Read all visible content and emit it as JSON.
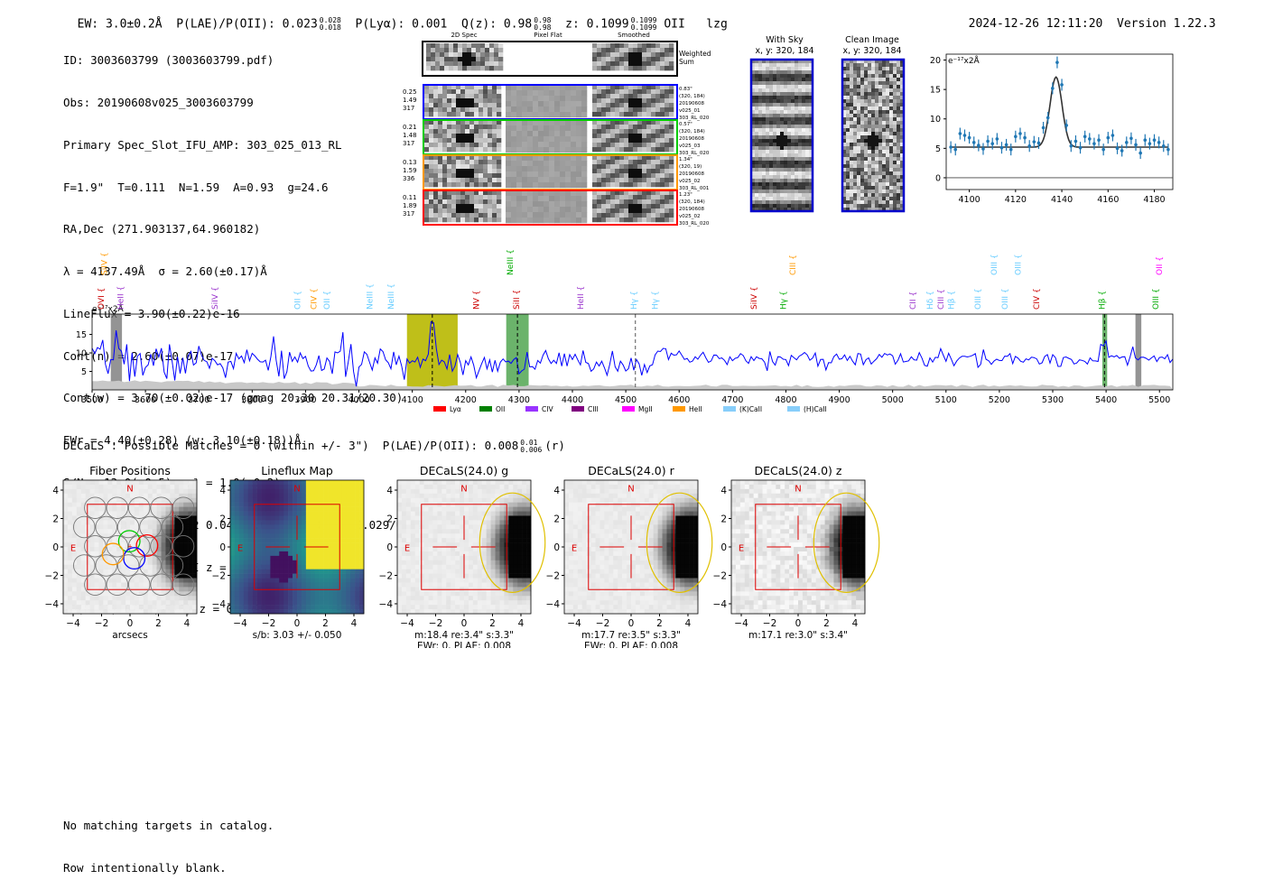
{
  "header": {
    "ew": "EW: 3.0±0.2Å",
    "plae": "P(LAE)/P(OII): 0.023",
    "plae_hi": "0.028",
    "plae_lo": "0.018",
    "plya": "P(Lyα): 0.001",
    "qz": "Q(z): 0.98",
    "qz_hi": "0.98",
    "qz_lo": "0.98",
    "z": "z: 0.1099",
    "z_hi": "0.1099",
    "z_lo": "0.1099",
    "line": "OII",
    "tag": "lzg",
    "datetime": "2024-12-26 12:11:20",
    "version": "Version 1.22.3"
  },
  "info_lines": [
    "ID: 3003603799 (3003603799.pdf)",
    "Obs: 20190608v025_3003603799",
    "Primary Spec_Slot_IFU_AMP: 303_025_013_RL",
    "F=1.9\"  T=0.111  N=1.59  A=0.93  g=24.6",
    "RA,Dec (271.903137,64.960182)",
    "λ = 4137.49Å  σ = 2.60(±0.17)Å",
    "LineFlux = 3.90(±0.22)e-16",
    "Cont(n) = 2.60(±0.07)e-17",
    "Cont(w) = 3.70(±0.02)e-17 (gmag 20.30 20.31/20.30)",
    "EWr = 4.40(±0.28) (w: 3.10(±0.18))Å",
    "S/N = 13.0(±0.5)  χ² = 1.0(±0.2)",
    "P(LAE)/P(OII): 0.042 0.047/0.035 (w: 0.024 0.029/0.02)",
    "LyA z = 2.4035   OII z = 0.1099",
    "*Q(0.98) OII (3728) z = 0.1099   EW r = 9.4Å"
  ],
  "cutouts": {
    "col_titles": [
      "2D Spec",
      "Pixel Flat",
      "Smoothed"
    ],
    "weighted_label": "Weighted Sum",
    "rows": [
      {
        "left": [
          "0.25",
          "1.49",
          "317"
        ],
        "right": [
          "0.83\"",
          "(320, 184)",
          "20190608",
          "v025_01",
          "303_RL_020"
        ],
        "color": "#0000ff"
      },
      {
        "left": [
          "0.21",
          "1.48",
          "317"
        ],
        "right": [
          "0.57\"",
          "(320, 184)",
          "20190608",
          "v025_03",
          "303_RL_020"
        ],
        "color": "#00cc00"
      },
      {
        "left": [
          "0.13",
          "1.59",
          "336"
        ],
        "right": [
          "1.34\"",
          "(320, 19)",
          "20190608",
          "v025_02",
          "303_RL_001"
        ],
        "color": "#ff9900"
      },
      {
        "left": [
          "0.11",
          "1.89",
          "317"
        ],
        "right": [
          "1.23\"",
          "(320, 184)",
          "20190608",
          "v025_02",
          "303_RL_020"
        ],
        "color": "#ff0000"
      }
    ]
  },
  "sky": {
    "with_sky_title": "With Sky",
    "with_sky_sub": "x, y: 320, 184",
    "clean_title": "Clean Image",
    "clean_sub": "x, y: 320, 184"
  },
  "chart_data": [
    {
      "type": "scatter",
      "title": "",
      "ylabel": "e⁻¹⁷x2Å",
      "xlim": [
        4090,
        4188
      ],
      "ylim": [
        -2,
        21
      ],
      "xticks": [
        4100,
        4120,
        4140,
        4160,
        4180
      ],
      "yticks": [
        0,
        5,
        10,
        15,
        20
      ],
      "points_x": [
        4092,
        4094,
        4096,
        4098,
        4100,
        4102,
        4104,
        4106,
        4108,
        4110,
        4112,
        4114,
        4116,
        4118,
        4120,
        4122,
        4124,
        4126,
        4128,
        4130,
        4132,
        4134,
        4136,
        4138,
        4140,
        4142,
        4144,
        4146,
        4148,
        4150,
        4152,
        4154,
        4156,
        4158,
        4160,
        4162,
        4164,
        4166,
        4168,
        4170,
        4172,
        4174,
        4176,
        4178,
        4180,
        4182,
        4184,
        4186
      ],
      "points_y": [
        5.2,
        4.8,
        7.5,
        7.2,
        6.8,
        6.0,
        5.5,
        4.9,
        6.2,
        5.8,
        6.6,
        5.1,
        5.6,
        4.8,
        7.0,
        7.5,
        6.8,
        5.4,
        6.1,
        5.9,
        8.5,
        10.2,
        15.2,
        19.6,
        15.8,
        8.9,
        5.4,
        6.2,
        5.1,
        7.0,
        6.6,
        5.8,
        6.4,
        4.8,
        6.8,
        7.2,
        5.0,
        4.6,
        6.0,
        6.7,
        5.6,
        4.2,
        6.4,
        5.8,
        6.4,
        6.0,
        5.4,
        4.8
      ],
      "err": 1.0,
      "model": {
        "amplitude": 11.9,
        "center": 4137.49,
        "sigma": 2.6,
        "continuum": 5.2
      }
    },
    {
      "type": "line",
      "title": "",
      "ylabel": "e⁻¹⁷x2Å",
      "xlim": [
        3500,
        5525
      ],
      "ylim": [
        0,
        20.5
      ],
      "xticks": [
        3500,
        3600,
        3700,
        3800,
        3900,
        4000,
        4100,
        4200,
        4300,
        4400,
        4500,
        4600,
        4700,
        4800,
        4900,
        5000,
        5100,
        5200,
        5300,
        5400,
        5500
      ],
      "yticks": [
        5,
        10,
        15
      ],
      "series": [
        {
          "name": "flux",
          "color": "#0000ff",
          "x_start": 3500,
          "x_step": 5,
          "level_start": 7.5,
          "level_end": 7.5,
          "seed": 7
        },
        {
          "name": "noise",
          "color": "#b0b0b0"
        }
      ],
      "shaded_regions": [
        {
          "x0": 3535,
          "x1": 3556,
          "color": "#707070",
          "label": "sky"
        },
        {
          "x0": 4090,
          "x1": 4185,
          "color": "#b8b800",
          "label": "Lyα window"
        },
        {
          "x0": 4276,
          "x1": 4318,
          "color": "#3a9a3a",
          "label": "OII window"
        },
        {
          "x0": 5393,
          "x1": 5402,
          "color": "#3a9a3a",
          "label": "Hβ window"
        },
        {
          "x0": 5455,
          "x1": 5466,
          "color": "#707070",
          "label": "sky"
        }
      ],
      "line_peaks": [
        {
          "x": 4137.5,
          "height": 13.0
        },
        {
          "x": 5397,
          "height": 6.5
        },
        {
          "x": 3548,
          "height": 8.0
        }
      ],
      "vlines": [
        {
          "x": 4137.5,
          "color": "#000000"
        },
        {
          "x": 4297,
          "color": "#000000"
        },
        {
          "x": 4518,
          "color": "#555555"
        },
        {
          "x": 5397,
          "color": "#000000"
        }
      ],
      "line_labels": [
        {
          "name": "OVI",
          "x": 3522,
          "color": "#cc0000",
          "row": 1
        },
        {
          "name": "HeII",
          "x": 3558,
          "color": "#9933cc",
          "row": 1
        },
        {
          "name": "SiIV",
          "x": 3528,
          "color": "#ff9900",
          "row": 0
        },
        {
          "name": "SiIV",
          "x": 3735,
          "color": "#9933cc",
          "row": 1
        },
        {
          "name": "OII",
          "x": 3890,
          "color": "#66ccff",
          "row": 1
        },
        {
          "name": "CIV",
          "x": 3920,
          "color": "#ff9900",
          "row": 1
        },
        {
          "name": "OII",
          "x": 3945,
          "color": "#66ccff",
          "row": 1
        },
        {
          "name": "NeIII",
          "x": 4025,
          "color": "#66ccff",
          "row": 1
        },
        {
          "name": "NeIII",
          "x": 4065,
          "color": "#66ccff",
          "row": 1
        },
        {
          "name": "NV",
          "x": 4225,
          "color": "#cc0000",
          "row": 1
        },
        {
          "name": "NeIII",
          "x": 4288,
          "color": "#00aa00",
          "row": 0
        },
        {
          "name": "SiII",
          "x": 4300,
          "color": "#cc0000",
          "row": 1
        },
        {
          "name": "HeII",
          "x": 4420,
          "color": "#9933cc",
          "row": 1
        },
        {
          "name": "Hγ",
          "x": 4520,
          "color": "#66ccff",
          "row": 1
        },
        {
          "name": "Hγ",
          "x": 4560,
          "color": "#66ccff",
          "row": 1
        },
        {
          "name": "SiIV",
          "x": 4745,
          "color": "#cc0000",
          "row": 1
        },
        {
          "name": "Hγ",
          "x": 4800,
          "color": "#00aa00",
          "row": 1
        },
        {
          "name": "CIII",
          "x": 4818,
          "color": "#ff9900",
          "row": 0
        },
        {
          "name": "CII",
          "x": 5043,
          "color": "#9933cc",
          "row": 1
        },
        {
          "name": "Hδ",
          "x": 5075,
          "color": "#66ccff",
          "row": 1
        },
        {
          "name": "CIII",
          "x": 5095,
          "color": "#9933cc",
          "row": 1
        },
        {
          "name": "Hβ",
          "x": 5115,
          "color": "#66ccff",
          "row": 1
        },
        {
          "name": "OIII",
          "x": 5165,
          "color": "#66ccff",
          "row": 1
        },
        {
          "name": "OIII",
          "x": 5195,
          "color": "#66ccff",
          "row": 0
        },
        {
          "name": "OIII",
          "x": 5215,
          "color": "#66ccff",
          "row": 1
        },
        {
          "name": "OIII",
          "x": 5240,
          "color": "#66ccff",
          "row": 0
        },
        {
          "name": "CIV",
          "x": 5275,
          "color": "#cc0000",
          "row": 1
        },
        {
          "name": "Hβ",
          "x": 5397,
          "color": "#00aa00",
          "row": 1
        },
        {
          "name": "OII",
          "x": 5505,
          "color": "#ff00ff",
          "row": 0
        },
        {
          "name": "OIII",
          "x": 5498,
          "color": "#00aa00",
          "row": 1
        }
      ],
      "legend": [
        {
          "label": "Lyα",
          "color": "#ff0000"
        },
        {
          "label": "OII",
          "color": "#008000"
        },
        {
          "label": "CIV",
          "color": "#9933ff"
        },
        {
          "label": "CIII",
          "color": "#800080"
        },
        {
          "label": "MgII",
          "color": "#ff00ff"
        },
        {
          "label": "HeII",
          "color": "#ff9900"
        },
        {
          "label": "(K)CaII",
          "color": "#87cefa"
        },
        {
          "label": "(H)CaII",
          "color": "#87cefa"
        }
      ]
    }
  ],
  "decals": {
    "summary": "DECaLS : Possible Matches = 0 (within +/- 3\")  P(LAE)/P(OII): 0.008",
    "summary_hi": "0.01",
    "summary_lo": "0.006",
    "summary_tail": "(r)",
    "panels": [
      {
        "title": "Fiber Positions",
        "lines": [
          "arcsecs"
        ],
        "kind": "fiber"
      },
      {
        "title": "Lineflux Map",
        "lines": [
          "s/b: 3.03 +/- 0.050"
        ],
        "kind": "flux"
      },
      {
        "title": "DECaLS(24.0) g",
        "lines": [
          "m:18.4  re:3.4\"  s:3.3\"",
          "EWr: 0, PLAE: 0.008"
        ],
        "kind": "g"
      },
      {
        "title": "DECaLS(24.0) r",
        "lines": [
          "m:17.7  re:3.5\"  s:3.3\"",
          "EWr: 0, PLAE: 0.008"
        ],
        "kind": "r"
      },
      {
        "title": "DECaLS(24.0) z",
        "lines": [
          "m:17.1  re:3.0\"  s:3.4\""
        ],
        "kind": "z"
      }
    ],
    "axis_ticks": [
      "−4",
      "−2",
      "0",
      "2",
      "4"
    ],
    "north": "N",
    "east": "E"
  },
  "footer": {
    "line1": "No matching targets in catalog.",
    "line2": "Row intentionally blank."
  }
}
